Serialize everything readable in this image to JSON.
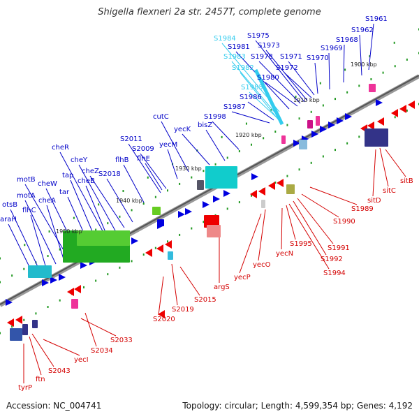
{
  "title": "Shigella flexneri 2a str. 2457T, complete genome",
  "accession": "Accession: NC_004741",
  "topology": "Topology: circular; Length: 4,599,354 bp; Genes: 4,192",
  "colors": {
    "forward_label": "#0000c8",
    "reverse_label": "#d40000",
    "highlight_label": "#33ccee",
    "backbone": "#777777",
    "tick": "#229922"
  },
  "ticks": [
    "1900 kbp",
    "1910 kbp",
    "1920 kbp",
    "1930 kbp",
    "1940 kbp",
    "1950 kbp"
  ],
  "upper_labels": [
    "S1961",
    "S1962",
    "S1968",
    "S1969",
    "S1970",
    "S1971",
    "S1972",
    "S1973",
    "S1975",
    "S1978",
    "S1980",
    "S1981",
    "S1984",
    "S1983",
    "S1982",
    "S1985",
    "S1986",
    "S1987",
    "S1998",
    "bisZ",
    "yecK",
    "cutC",
    "yecM",
    "S2009",
    "S2011",
    "flhE",
    "flhB",
    "S2018",
    "cheZ",
    "cheY",
    "cheR",
    "cheB",
    "tap",
    "tar",
    "cheW",
    "motB",
    "cheA",
    "motA",
    "flhC",
    "otsB",
    "araH"
  ],
  "highlight_labels": [
    "S1984",
    "S1983",
    "S1982",
    "S1985"
  ],
  "lower_labels": [
    "sitB",
    "sitC",
    "sitD",
    "S1989",
    "S1990",
    "S1991",
    "S1992",
    "S1994",
    "S1995",
    "yecN",
    "yecO",
    "yecP",
    "argS",
    "S2015",
    "S2019",
    "S2020",
    "S2033",
    "S2034",
    "yecI",
    "S2043",
    "ftn",
    "tyrP"
  ]
}
